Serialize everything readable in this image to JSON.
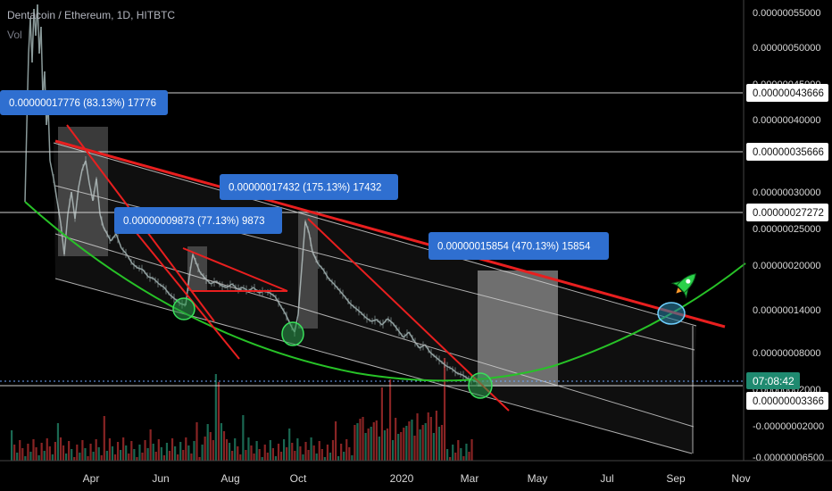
{
  "header": {
    "pair_title": "Dentacoin / Ethereum, 1D, HITBTC",
    "volume_label": "Vol"
  },
  "colors": {
    "background": "#000000",
    "channel_line": "#b0b0b0",
    "resistance": "#e81f1f",
    "curve": "#27c227",
    "candles": "#8a9a9a",
    "volume_up": "#1e7a60",
    "volume_down": "#a02a2a",
    "axis_text": "#d8d8d8",
    "label_box": "#2f6fd0",
    "label_text": "#ffffff"
  },
  "chart_data": {
    "type": "line",
    "title": "",
    "x_ticks": [
      "Apr",
      "Jun",
      "Aug",
      "Oct",
      "2020",
      "Mar",
      "May",
      "Jul",
      "Sep",
      "Nov"
    ],
    "y_ticks": [
      "0.00000055000",
      "0.00000050000",
      "0.00000045000",
      "0.00000040000",
      "0.00000035000",
      "0.00000030000",
      "0.00000025000",
      "0.00000020000",
      "0.00000014000",
      "0.00000008000",
      "0.00000002000",
      "-0.00000002000",
      "-0.00000006500"
    ],
    "price_labels": [
      {
        "value": "0.00000043666"
      },
      {
        "value": "0.00000035666"
      },
      {
        "value": "0.00000027272"
      },
      {
        "value": "0.00000003366"
      }
    ],
    "countdown": "07:08:42",
    "measurements": [
      {
        "text": "0.00000017776 (83.13%) 17776"
      },
      {
        "text": "0.00000017432 (175.13%) 17432"
      },
      {
        "text": "0.00000009873 (77.13%) 9873"
      },
      {
        "text": "0.00000015854 (470.13%) 15854"
      }
    ],
    "annotations": [
      "green circles at curve touches",
      "rocket icon at projected breakout"
    ]
  }
}
